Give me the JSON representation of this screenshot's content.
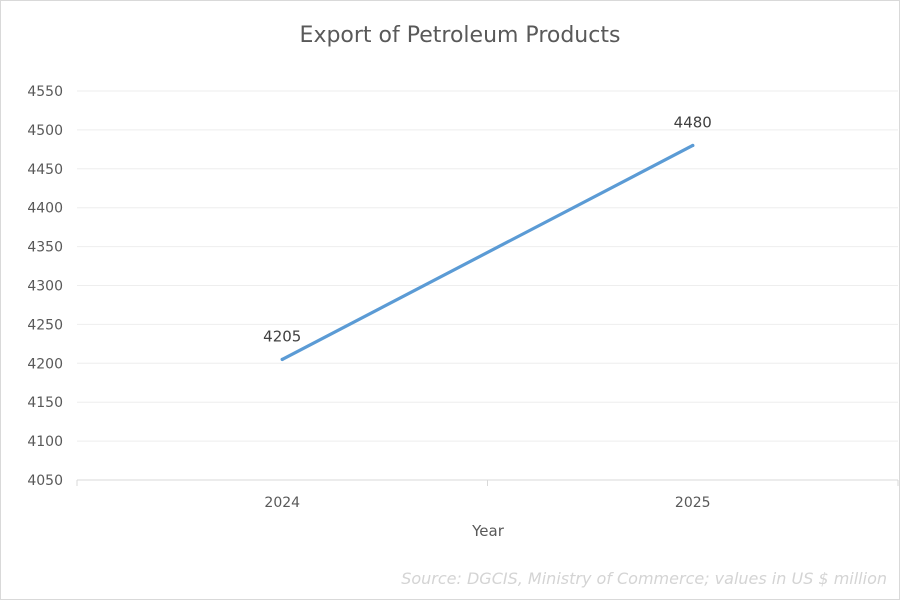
{
  "chart_data": {
    "type": "line",
    "title": "Export of Petroleum Products",
    "xlabel": "Year",
    "ylabel": "",
    "categories": [
      "2024",
      "2025"
    ],
    "series": [
      {
        "values": [
          4205,
          4480
        ],
        "color": "#5b9bd5"
      }
    ],
    "data_labels": [
      "4205",
      "4480"
    ],
    "ylim": [
      4050,
      4550
    ],
    "yticks": [
      4050,
      4100,
      4150,
      4200,
      4250,
      4300,
      4350,
      4400,
      4450,
      4500,
      4550
    ],
    "grid": true,
    "legend": "none"
  },
  "source_note": "Source: DGCIS, Ministry of Commerce; values in US $ million"
}
